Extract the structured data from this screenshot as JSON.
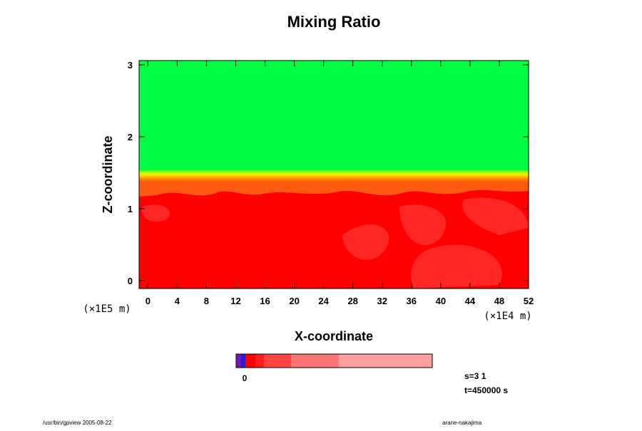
{
  "chart_data": {
    "type": "contour",
    "title": "Mixing Ratio",
    "x_label": "X-coordinate",
    "y_label": "Z-coordinate",
    "x_unit": "(×1E4 m)",
    "y_unit": "(×1E5 m)",
    "xlim": [
      -1.2,
      52
    ],
    "xticks": [
      0,
      4,
      8,
      12,
      16,
      20,
      24,
      28,
      32,
      36,
      40,
      44,
      48,
      52
    ],
    "ylim": [
      -0.11,
      3.06
    ],
    "yticks": [
      0,
      1,
      2,
      3
    ],
    "colorbar_colors": [
      "#7a10c0",
      "#2020d8",
      "#ff0000",
      "#ff1c1c",
      "#ff4444",
      "#ff7474",
      "#ff8c8c",
      "#ffa0a0"
    ],
    "colorbar_ticks": [
      0
    ],
    "notes": [
      "s=3 1",
      "t=450000 s"
    ],
    "footer_left": "/usr/bin/gpview 2005-08-22",
    "footer_right": "arane-nakajima"
  }
}
